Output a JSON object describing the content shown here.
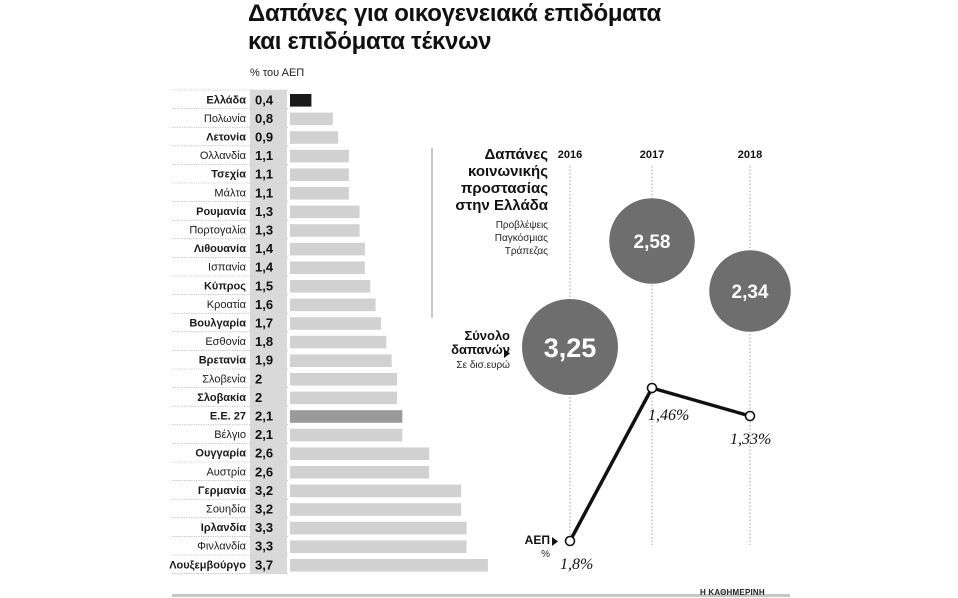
{
  "title": {
    "line1": "Δαπάνες για οικογενειακά επιδόματα",
    "line2": "και επιδόματα τέκνων"
  },
  "unit_label": "% του ΑΕΠ",
  "greece_panel": {
    "title_lines": [
      "Δαπάνες",
      "κοινωνικής",
      "προστασίας",
      "στην Ελλάδα"
    ],
    "subtitle_lines": [
      "Προβλέψεις",
      "Παγκόσμιας",
      "Τράπεζας"
    ],
    "total_label_lines": [
      "Σύνολο",
      "δαπανών"
    ],
    "total_sub": "Σε δισ.ευρώ",
    "gdp_label": "ΑΕΠ",
    "gdp_sub": "%"
  },
  "source": "Η ΚΑΘΗΜΕΡΙΝΗ",
  "colors": {
    "bar": "#d1d1d1",
    "bar_highlight": "#1a1a1a",
    "bar_eu": "#9a9a9a",
    "value_cell": "#d9d9d9",
    "circle": "#6e6e6e",
    "line": "#111111"
  },
  "chart_data": [
    {
      "type": "bar",
      "orientation": "horizontal",
      "categories": [
        "Ελλάδα",
        "Πολωνία",
        "Λετονία",
        "Ολλανδία",
        "Τσεχία",
        "Μάλτα",
        "Ρουμανία",
        "Πορτογαλία",
        "Λιθουανία",
        "Ισπανία",
        "Κύπρος",
        "Κροατία",
        "Βουλγαρία",
        "Εσθονία",
        "Βρετανία",
        "Σλοβενία",
        "Σλοβακία",
        "Ε.Ε. 27",
        "Βέλγιο",
        "Ουγγαρία",
        "Αυστρία",
        "Γερμανία",
        "Σουηδία",
        "Ιρλανδία",
        "Φινλανδία",
        "Λουξεμβούργο"
      ],
      "values": [
        0.4,
        0.8,
        0.9,
        1.1,
        1.1,
        1.1,
        1.3,
        1.3,
        1.4,
        1.4,
        1.5,
        1.6,
        1.7,
        1.8,
        1.9,
        2,
        2,
        2.1,
        2.1,
        2.6,
        2.6,
        3.2,
        3.2,
        3.3,
        3.3,
        3.7
      ],
      "value_labels": [
        "0,4",
        "0,8",
        "0,9",
        "1,1",
        "1,1",
        "1,1",
        "1,3",
        "1,3",
        "1,4",
        "1,4",
        "1,5",
        "1,6",
        "1,7",
        "1,8",
        "1,9",
        "2",
        "2",
        "2,1",
        "2,1",
        "2,6",
        "2,6",
        "3,2",
        "3,2",
        "3,3",
        "3,3",
        "3,7"
      ],
      "bold_labels": [
        true,
        false,
        true,
        false,
        true,
        false,
        true,
        false,
        true,
        false,
        true,
        false,
        true,
        false,
        true,
        false,
        true,
        true,
        false,
        true,
        false,
        true,
        false,
        true,
        false,
        true
      ],
      "highlight": "Ελλάδα",
      "eu_average": "Ε.Ε. 27",
      "unit": "% του ΑΕΠ"
    },
    {
      "type": "line",
      "x": [
        "2016",
        "2017",
        "2018"
      ],
      "series": [
        {
          "name": "ΑΕΠ %",
          "values": [
            1.8,
            1.46,
            1.33
          ],
          "value_labels": [
            "1,8%",
            "1,46%",
            "1,33%"
          ]
        },
        {
          "name": "Σύνολο δαπανών",
          "type": "bubble",
          "values": [
            3.25,
            2.58,
            2.34
          ],
          "value_labels": [
            "3,25",
            "2,58",
            "2,34"
          ],
          "unit": "δισ. ευρώ"
        }
      ]
    }
  ]
}
